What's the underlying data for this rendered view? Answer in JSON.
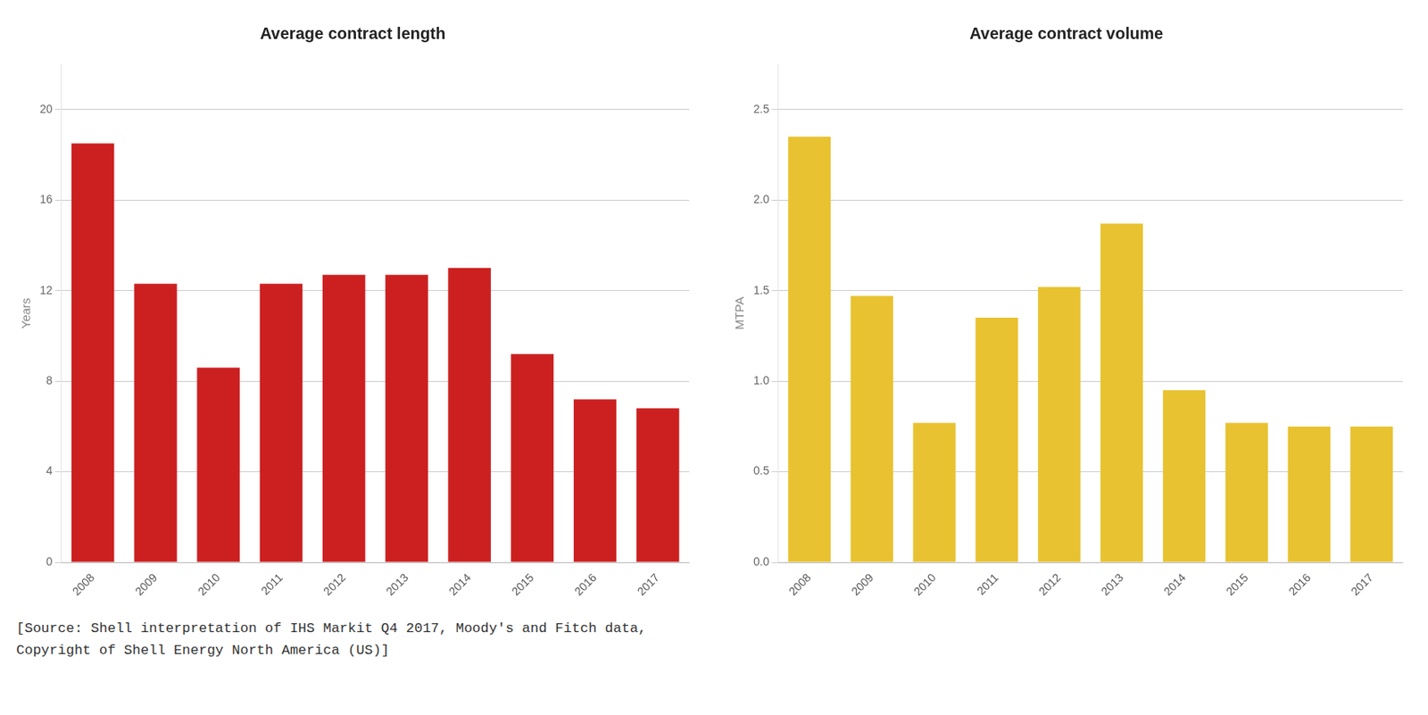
{
  "chart_data": [
    {
      "type": "bar",
      "title": "Average contract length",
      "ylabel": "Years",
      "categories": [
        "2008",
        "2009",
        "2010",
        "2011",
        "2012",
        "2013",
        "2014",
        "2015",
        "2016",
        "2017"
      ],
      "values": [
        18.5,
        12.3,
        8.6,
        12.3,
        12.7,
        12.7,
        13.0,
        9.2,
        7.2,
        6.8
      ],
      "color": "#CC2020",
      "ylim": [
        0,
        22
      ],
      "yticks": [
        0,
        4,
        8,
        12,
        16,
        20
      ],
      "grid": true
    },
    {
      "type": "bar",
      "title": "Average contract volume",
      "ylabel": "MTPA",
      "categories": [
        "2008",
        "2009",
        "2010",
        "2011",
        "2012",
        "2013",
        "2014",
        "2015",
        "2016",
        "2017"
      ],
      "values": [
        2.35,
        1.47,
        0.77,
        1.35,
        1.52,
        1.87,
        0.95,
        0.77,
        0.75,
        0.75
      ],
      "color": "#E8C230",
      "ylim": [
        0,
        2.75
      ],
      "yticks": [
        {
          "value": 0,
          "label": "0.0"
        },
        0.5,
        {
          "value": 1,
          "label": "1.0"
        },
        1.5,
        {
          "value": 2,
          "label": "2.0"
        },
        2.5
      ],
      "grid": true
    }
  ],
  "annotations": [
    "[Source: Shell interpretation of IHS Markit Q4 2017, Moody's and Fitch data,",
    "Copyright of Shell Energy North America (US)]"
  ]
}
